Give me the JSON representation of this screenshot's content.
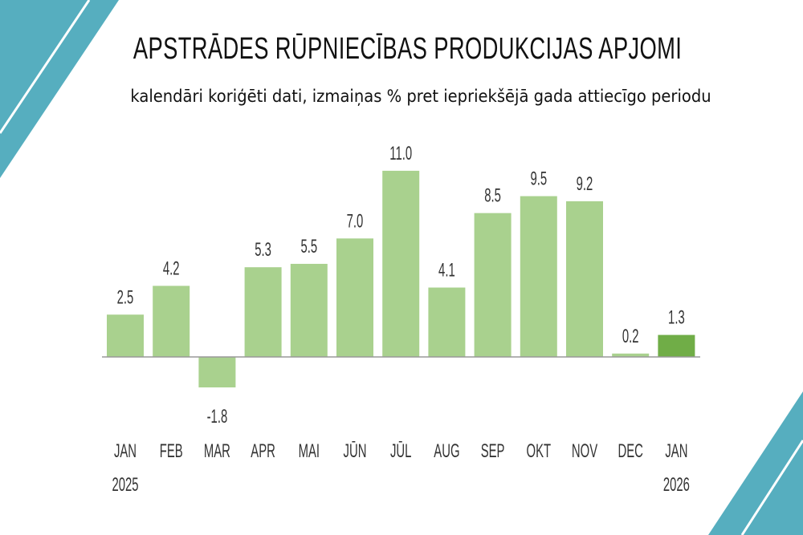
{
  "chart_data": {
    "type": "bar",
    "title": "APSTRĀDES RŪPNIECĪBAS PRODUKCIJAS APJOMI",
    "subtitle": "kalendāri koriģēti dati, izmaiņas % pret iepriekšējā gada attiecīgo periodu",
    "categories": [
      "JAN",
      "FEB",
      "MAR",
      "APR",
      "MAI",
      "JŪN",
      "JŪL",
      "AUG",
      "SEP",
      "OKT",
      "NOV",
      "DEC",
      "JAN"
    ],
    "year_labels": {
      "0": "2025",
      "12": "2026"
    },
    "values": [
      2.5,
      4.2,
      -1.8,
      5.3,
      5.5,
      7.0,
      11.0,
      4.1,
      8.5,
      9.5,
      9.2,
      0.2,
      1.3
    ],
    "value_labels": [
      "2.5",
      "4.2",
      "-1.8",
      "5.3",
      "5.5",
      "7.0",
      "11.0",
      "4.1",
      "8.5",
      "9.5",
      "9.2",
      "0.2",
      "1.3"
    ],
    "highlight_index": 12,
    "xlabel": "",
    "ylabel": "",
    "ylim": [
      -1.8,
      11.0
    ],
    "grid": false,
    "legend": "none",
    "colors": {
      "bar": "#a9d18e",
      "highlight": "#70ad47",
      "axis": "#999999",
      "decoration": "#56aebf"
    }
  }
}
